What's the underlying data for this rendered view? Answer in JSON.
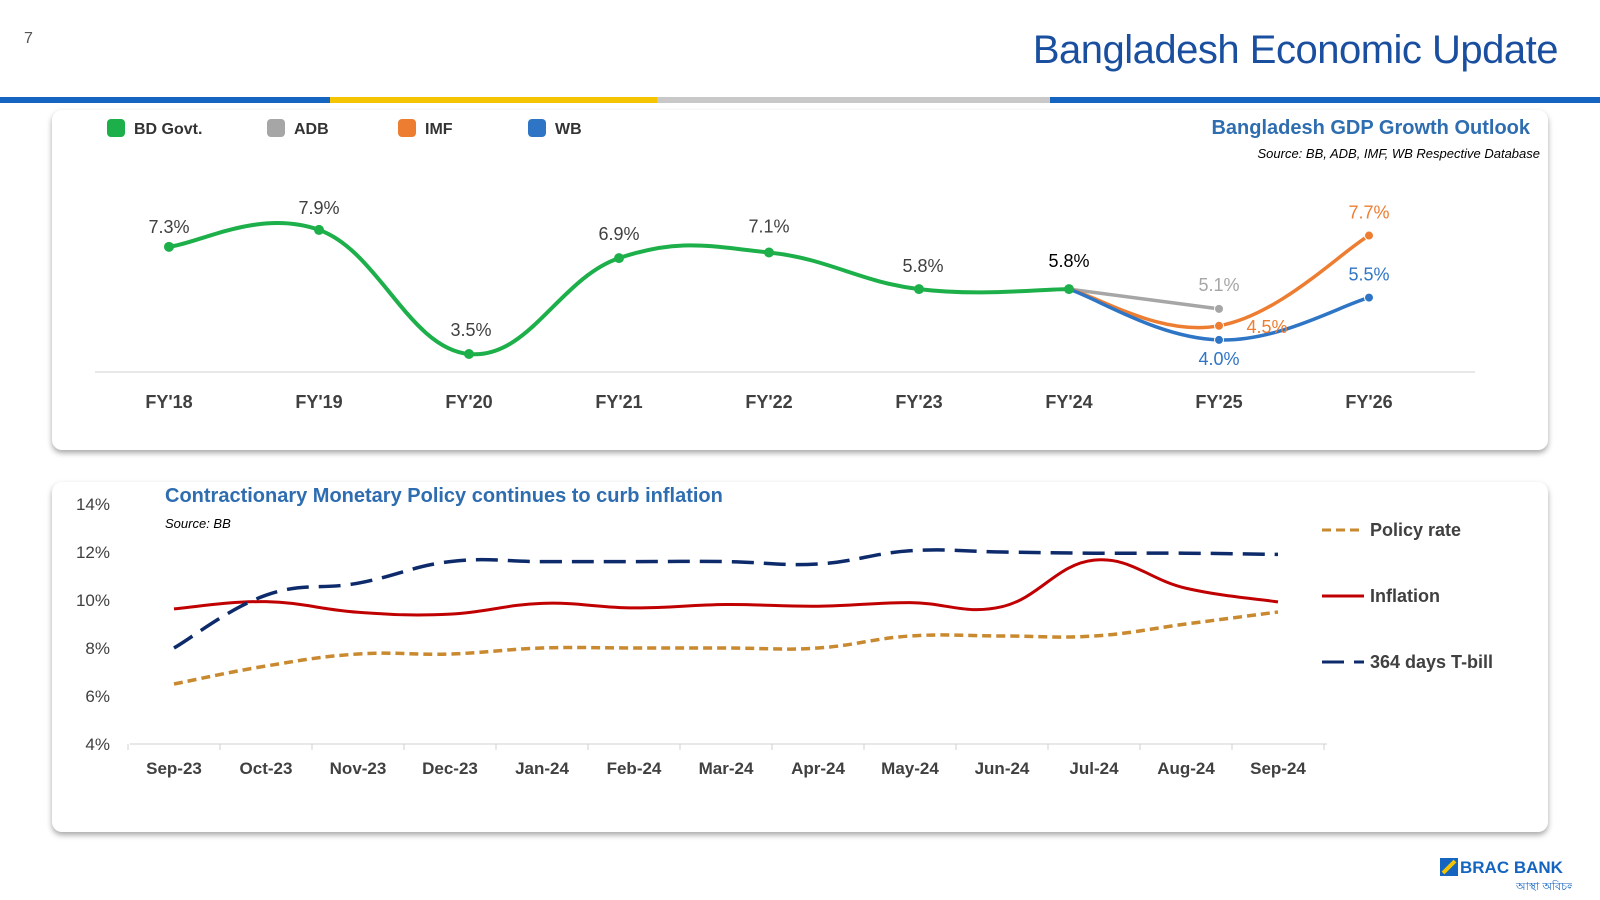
{
  "page_number": "7",
  "title": "Bangladesh Economic Update",
  "colors": {
    "title": "#1a4fa0",
    "bar_blue": "#1565c0",
    "bar_yellow": "#f5c400",
    "bar_gray": "#c8c8c8"
  },
  "logo": {
    "name": "BRAC BANK",
    "tagline": "আস্থা অবিচল"
  },
  "chart_data": [
    {
      "type": "line",
      "title": "Bangladesh GDP Growth Outlook",
      "source": "Source: BB, ADB, IMF, WB Respective Database",
      "legend_position": "top-left",
      "categories": [
        "FY'18",
        "FY'19",
        "FY'20",
        "FY'21",
        "FY'22",
        "FY'23",
        "FY'24",
        "FY'25",
        "FY'26"
      ],
      "series": [
        {
          "name": "BD Govt.",
          "color": "#1db04a",
          "values": [
            7.3,
            7.9,
            3.5,
            6.9,
            7.1,
            5.8,
            5.8,
            null,
            null
          ]
        },
        {
          "name": "ADB",
          "color": "#a6a6a6",
          "values": [
            null,
            null,
            null,
            null,
            null,
            null,
            5.8,
            5.1,
            null
          ]
        },
        {
          "name": "IMF",
          "color": "#ed7d31",
          "values": [
            null,
            null,
            null,
            null,
            null,
            null,
            5.8,
            4.5,
            7.7
          ]
        },
        {
          "name": "WB",
          "color": "#2e75c6",
          "values": [
            null,
            null,
            null,
            null,
            null,
            null,
            5.8,
            4.0,
            5.5
          ]
        }
      ],
      "data_labels": [
        {
          "series": "BD Govt.",
          "index": 0,
          "text": "7.3%"
        },
        {
          "series": "BD Govt.",
          "index": 1,
          "text": "7.9%"
        },
        {
          "series": "BD Govt.",
          "index": 2,
          "text": "3.5%"
        },
        {
          "series": "BD Govt.",
          "index": 3,
          "text": "6.9%"
        },
        {
          "series": "BD Govt.",
          "index": 4,
          "text": "7.1%"
        },
        {
          "series": "BD Govt.",
          "index": 5,
          "text": "5.8%"
        },
        {
          "series": "BD Govt.",
          "index": 6,
          "text": "5.8%"
        },
        {
          "series": "ADB",
          "index": 7,
          "text": "5.1%"
        },
        {
          "series": "IMF",
          "index": 7,
          "text": "4.5%"
        },
        {
          "series": "WB",
          "index": 7,
          "text": "4.0%"
        },
        {
          "series": "IMF",
          "index": 8,
          "text": "7.7%"
        },
        {
          "series": "WB",
          "index": 8,
          "text": "5.5%"
        }
      ],
      "grid": false
    },
    {
      "type": "line",
      "title": "Contractionary Monetary Policy continues to curb inflation",
      "source": "Source: BB",
      "legend_position": "right",
      "categories": [
        "Sep-23",
        "Oct-23",
        "Nov-23",
        "Dec-23",
        "Jan-24",
        "Feb-24",
        "Mar-24",
        "Apr-24",
        "May-24",
        "Jun-24",
        "Jul-24",
        "Aug-24",
        "Sep-24"
      ],
      "yticks": [
        "4%",
        "6%",
        "8%",
        "10%",
        "12%",
        "14%"
      ],
      "ylim": [
        4,
        14
      ],
      "series": [
        {
          "name": "Policy rate",
          "color": "#c9892f",
          "dash": "short",
          "values": [
            6.5,
            7.25,
            7.75,
            7.75,
            8.0,
            8.0,
            8.0,
            8.0,
            8.5,
            8.5,
            8.5,
            9.0,
            9.5
          ]
        },
        {
          "name": "Inflation",
          "color": "#c00000",
          "dash": "solid",
          "values": [
            9.63,
            9.93,
            9.49,
            9.41,
            9.86,
            9.67,
            9.81,
            9.74,
            9.89,
            9.72,
            11.66,
            10.49,
            9.92
          ]
        },
        {
          "name": "364 days T-bill",
          "color": "#0d2b6b",
          "dash": "long",
          "values": [
            8.0,
            10.2,
            10.7,
            11.6,
            11.6,
            11.6,
            11.6,
            11.5,
            12.05,
            12.0,
            11.95,
            11.95,
            11.9
          ]
        }
      ],
      "grid": false
    }
  ]
}
